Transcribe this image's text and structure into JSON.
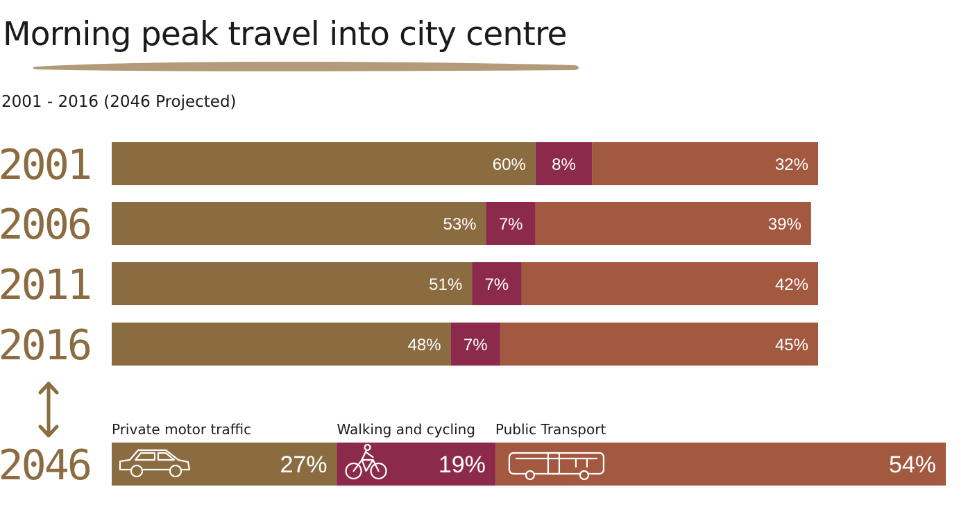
{
  "title": "Morning peak travel into city centre",
  "subtitle": "2001 - 2016  (2046 Projected)",
  "colors": {
    "private": "#8b6c41",
    "active": "#8c2a4c",
    "public": "#a35840",
    "underline": "#b39a78",
    "year_text": "#8b6c41"
  },
  "chart_data": {
    "type": "bar",
    "orientation": "horizontal",
    "stacked": true,
    "categories": [
      "2001",
      "2006",
      "2011",
      "2016",
      "2046"
    ],
    "series": [
      {
        "name": "Private motor traffic",
        "values": [
          60,
          53,
          51,
          48,
          27
        ]
      },
      {
        "name": "Walking and cycling",
        "values": [
          8,
          7,
          7,
          7,
          19
        ]
      },
      {
        "name": "Public Transport",
        "values": [
          32,
          39,
          42,
          45,
          54
        ]
      }
    ],
    "labels": [
      [
        "60%",
        "8%",
        "32%"
      ],
      [
        "53%",
        "7%",
        "39%"
      ],
      [
        "51%",
        "7%",
        "42%"
      ],
      [
        "48%",
        "7%",
        "45%"
      ],
      [
        "27%",
        "19%",
        "54%"
      ]
    ],
    "projected_category": "2046",
    "icons": [
      "car-icon",
      "bicycle-icon",
      "bus-icon"
    ]
  }
}
